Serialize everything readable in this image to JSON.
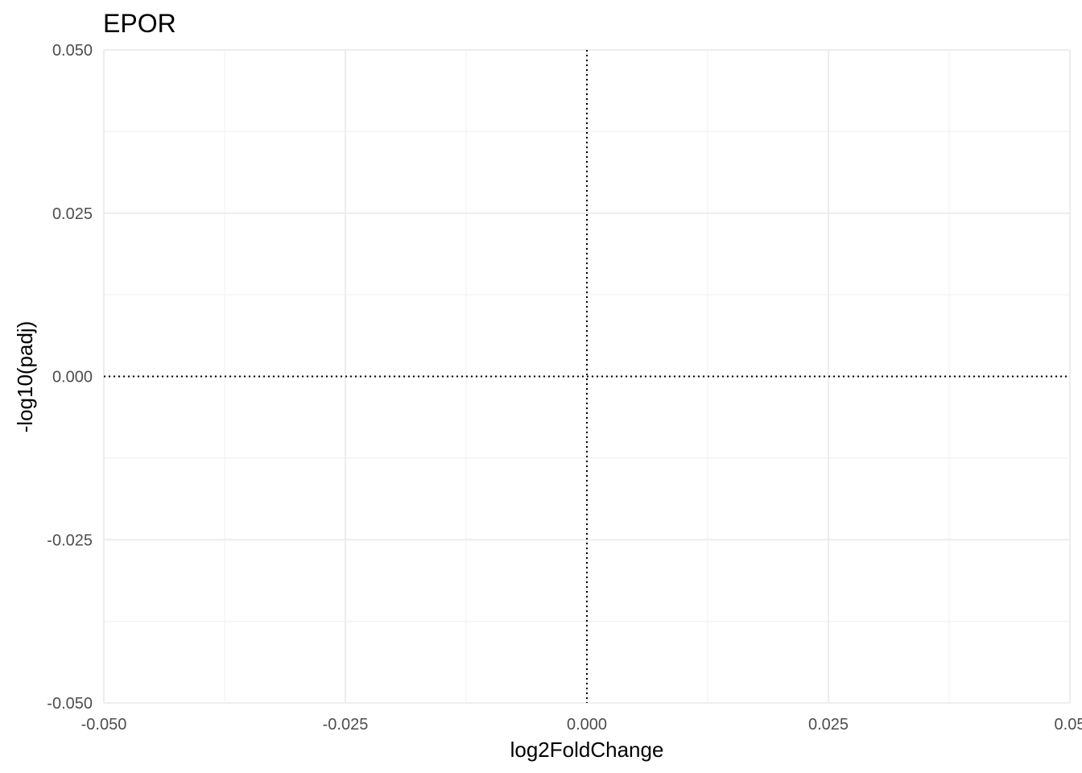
{
  "chart_data": {
    "type": "scatter",
    "title": "EPOR",
    "xlabel": "log2FoldChange",
    "ylabel": "-log10(padj)",
    "xlim": [
      -0.05,
      0.05
    ],
    "ylim": [
      -0.05,
      0.05
    ],
    "x_ticks": [
      -0.05,
      -0.025,
      0,
      0.025,
      0.05
    ],
    "y_ticks": [
      -0.05,
      -0.025,
      0,
      0.025,
      0.05
    ],
    "x_tick_labels": [
      "-0.050",
      "-0.025",
      "0.000",
      "0.025",
      "0.05"
    ],
    "y_tick_labels": [
      "-0.050",
      "-0.025",
      "0.000",
      "0.025",
      "0.050"
    ],
    "x_minor": [
      -0.0375,
      -0.0125,
      0.0125,
      0.0375
    ],
    "y_minor": [
      -0.0375,
      -0.0125,
      0.0125,
      0.0375
    ],
    "reference_lines": [
      {
        "orientation": "vertical",
        "value": 0,
        "style": "dotted"
      },
      {
        "orientation": "horizontal",
        "value": 0,
        "style": "dotted"
      }
    ],
    "points": [],
    "grid": true,
    "legend": "none",
    "colors": {
      "grid_major": "#ebebeb",
      "grid_minor": "#f2f2f2",
      "reference_line": "#000000",
      "tick_text": "#4d4d4d",
      "title_text": "#000000"
    }
  }
}
